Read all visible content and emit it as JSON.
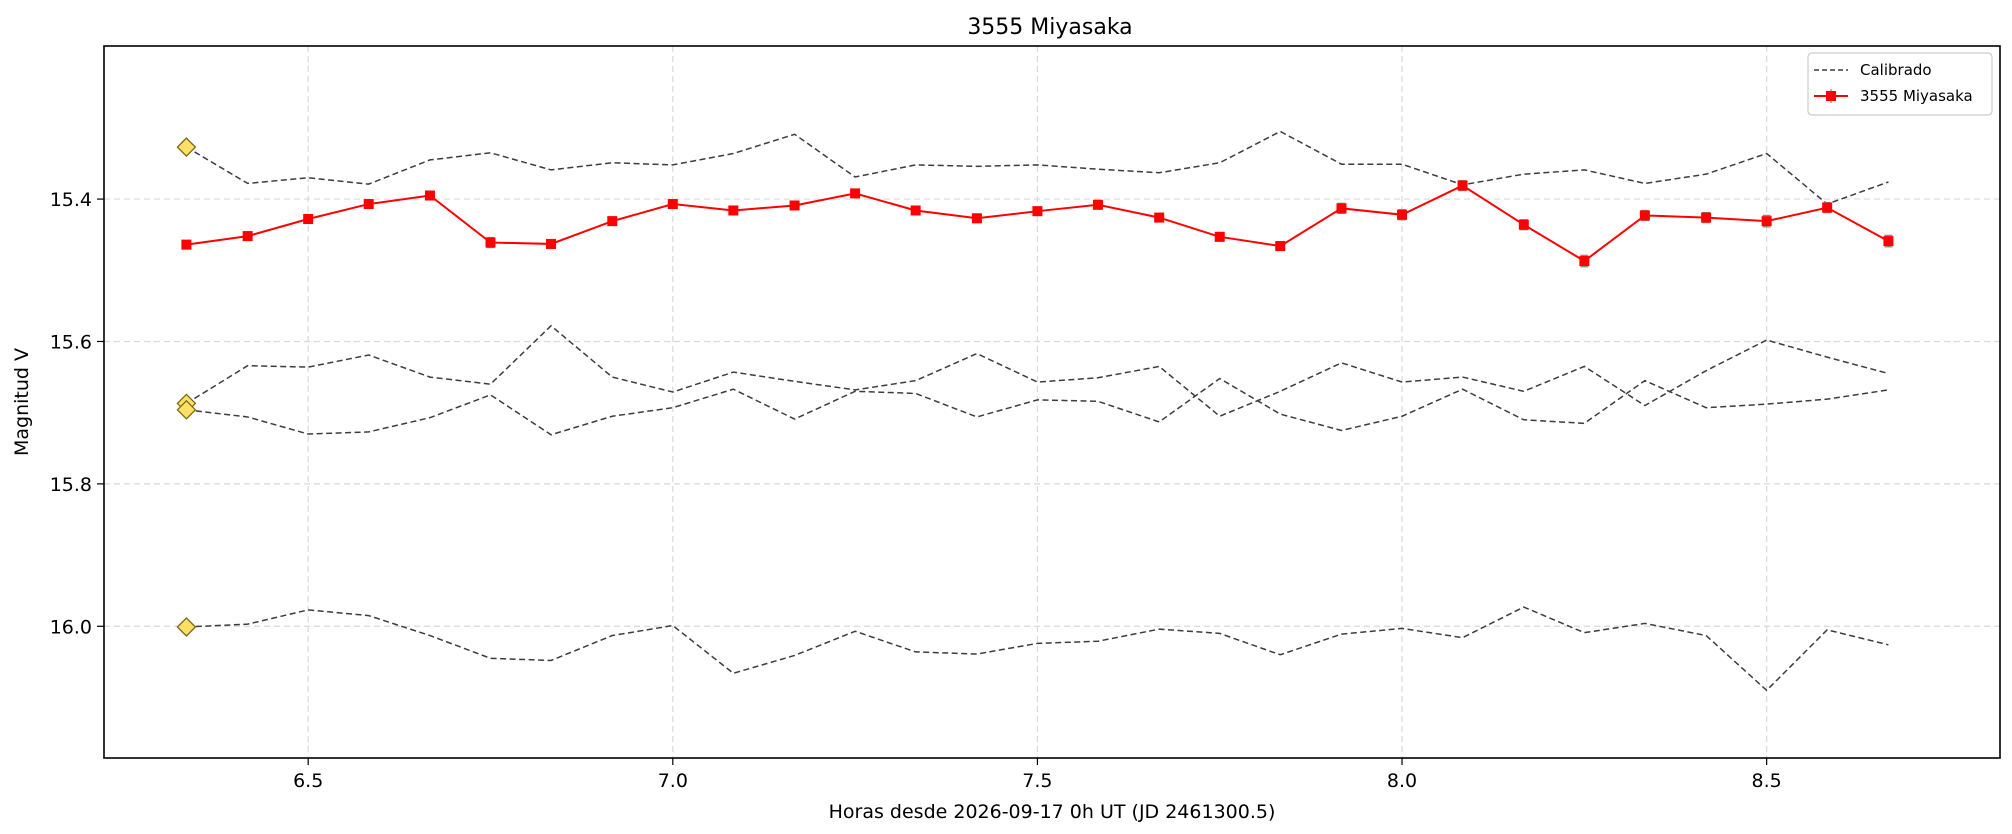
{
  "chart_data": {
    "type": "line",
    "title": "3555 Miyasaka",
    "xlabel": "Horas desde 2026-09-17 0h UT (JD 2461300.5)",
    "ylabel": "Magnitud V",
    "xlim": [
      6.22,
      8.82
    ],
    "ylim": [
      16.185,
      15.185
    ],
    "y_inverted": true,
    "grid": true,
    "legend_position": "top-right",
    "x_ticks": [
      {
        "value": 6.5,
        "label": "6.5"
      },
      {
        "value": 7.0,
        "label": "7.0"
      },
      {
        "value": 7.5,
        "label": "7.5"
      },
      {
        "value": 8.0,
        "label": "8.0"
      },
      {
        "value": 8.5,
        "label": "8.5"
      }
    ],
    "y_ticks": [
      {
        "value": 15.4,
        "label": "15.4"
      },
      {
        "value": 15.6,
        "label": "15.6"
      },
      {
        "value": 15.8,
        "label": "15.8"
      },
      {
        "value": 16.0,
        "label": "16.0"
      }
    ],
    "x": [
      6.333,
      6.417,
      6.5,
      6.583,
      6.667,
      6.75,
      6.833,
      6.917,
      7.0,
      7.083,
      7.167,
      7.25,
      7.333,
      7.417,
      7.5,
      7.583,
      7.667,
      7.75,
      7.833,
      7.917,
      8.0,
      8.083,
      8.167,
      8.25,
      8.333,
      8.417,
      8.5,
      8.583,
      8.667
    ],
    "series": [
      {
        "name": "3555 Miyasaka",
        "role": "target",
        "color": "#ff0000",
        "marker": "square",
        "values": [
          15.464,
          15.452,
          15.428,
          15.407,
          15.395,
          15.461,
          15.463,
          15.431,
          15.407,
          15.416,
          15.409,
          15.392,
          15.416,
          15.427,
          15.417,
          15.408,
          15.426,
          15.453,
          15.466,
          15.413,
          15.422,
          15.381,
          15.436,
          15.487,
          15.423,
          15.426,
          15.431,
          15.412,
          15.459
        ],
        "errors": [
          0.006,
          0.006,
          0.006,
          0.006,
          0.006,
          0.007,
          0.006,
          0.006,
          0.006,
          0.006,
          0.006,
          0.006,
          0.006,
          0.006,
          0.006,
          0.006,
          0.006,
          0.006,
          0.006,
          0.007,
          0.007,
          0.007,
          0.007,
          0.008,
          0.007,
          0.007,
          0.008,
          0.007,
          0.008
        ]
      },
      {
        "name": "Calibrado",
        "role": "comparison",
        "color": "#3c3c3c",
        "values": [
          15.327,
          15.378,
          15.37,
          15.379,
          15.345,
          15.335,
          15.359,
          15.349,
          15.352,
          15.336,
          15.309,
          15.369,
          15.352,
          15.354,
          15.352,
          15.358,
          15.363,
          15.349,
          15.305,
          15.351,
          15.351,
          15.38,
          15.365,
          15.359,
          15.378,
          15.365,
          15.336,
          15.407,
          15.376
        ]
      },
      {
        "name": "",
        "role": "comparison",
        "color": "#3c3c3c",
        "values": [
          15.687,
          15.634,
          15.636,
          15.619,
          15.65,
          15.66,
          15.578,
          15.65,
          15.671,
          15.643,
          15.656,
          15.668,
          15.655,
          15.617,
          15.657,
          15.651,
          15.635,
          15.705,
          15.67,
          15.63,
          15.657,
          15.65,
          15.67,
          15.635,
          15.69,
          15.641,
          15.598,
          15.622,
          15.645
        ]
      },
      {
        "name": "",
        "role": "comparison",
        "color": "#3c3c3c",
        "values": [
          15.696,
          15.706,
          15.73,
          15.727,
          15.707,
          15.675,
          15.731,
          15.705,
          15.693,
          15.667,
          15.709,
          15.67,
          15.673,
          15.706,
          15.682,
          15.684,
          15.713,
          15.652,
          15.702,
          15.725,
          15.705,
          15.667,
          15.71,
          15.715,
          15.655,
          15.693,
          15.688,
          15.681,
          15.668
        ]
      },
      {
        "name": "",
        "role": "comparison",
        "color": "#3c3c3c",
        "values": [
          16.001,
          15.997,
          15.977,
          15.985,
          16.013,
          16.045,
          16.048,
          16.013,
          15.999,
          16.066,
          16.041,
          16.007,
          16.036,
          16.039,
          16.024,
          16.021,
          16.004,
          16.01,
          16.04,
          16.011,
          16.003,
          16.016,
          15.973,
          16.009,
          15.996,
          16.013,
          16.09,
          16.005,
          16.026
        ]
      }
    ],
    "reference_markers": [
      {
        "x": 6.333,
        "value": 15.327,
        "color": "#ffe066"
      },
      {
        "x": 6.333,
        "value": 15.687,
        "color": "#ffe066"
      },
      {
        "x": 6.333,
        "value": 15.696,
        "color": "#ffe066"
      },
      {
        "x": 6.333,
        "value": 16.001,
        "color": "#ffe066"
      }
    ],
    "legend": [
      {
        "label": "Calibrado",
        "style": "dashed"
      },
      {
        "label": "3555 Miyasaka",
        "style": "marker"
      }
    ]
  }
}
